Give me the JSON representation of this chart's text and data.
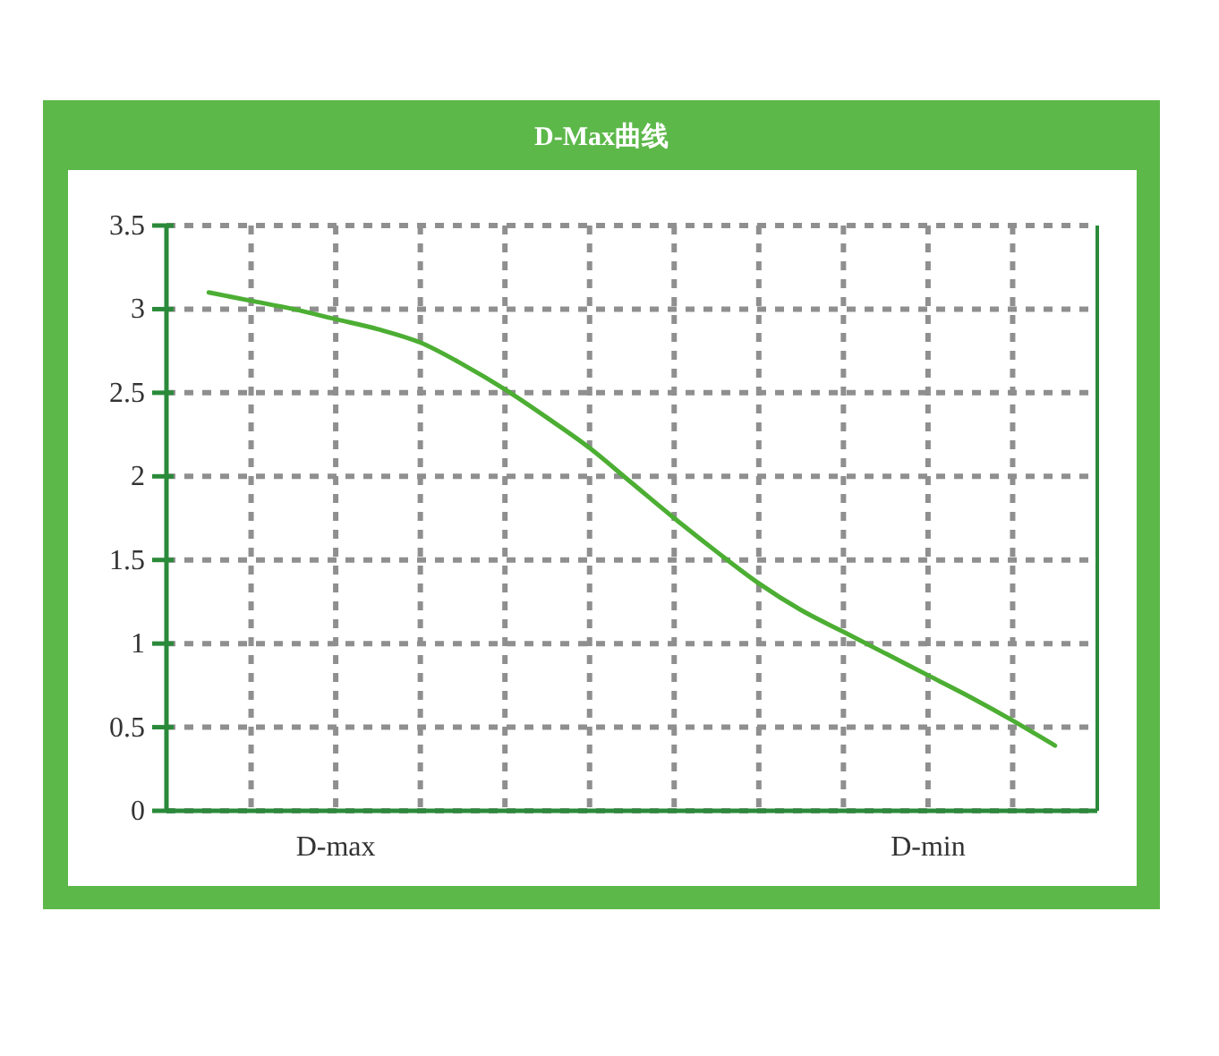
{
  "chart_data": {
    "type": "line",
    "title": "D-Max曲线",
    "categories": [
      null,
      null,
      null,
      "D-max",
      null,
      null,
      null,
      null,
      null,
      null,
      null,
      null,
      null,
      null,
      null,
      null,
      null,
      "D-min",
      null,
      null,
      null
    ],
    "series": [
      {
        "color": "#4cae33",
        "values": [
          3.1,
          3.05,
          3.0,
          2.94,
          2.88,
          2.8,
          2.67,
          2.52,
          2.35,
          2.17,
          1.96,
          1.75,
          1.55,
          1.36,
          1.2,
          1.07,
          0.94,
          0.81,
          0.68,
          0.54,
          0.39
        ]
      }
    ],
    "ylim": [
      0,
      3.5
    ],
    "yticks": [
      0,
      0.5,
      1,
      1.5,
      2,
      2.5,
      3,
      3.5
    ],
    "grid": true,
    "line_style": "solid",
    "marker": "none"
  }
}
